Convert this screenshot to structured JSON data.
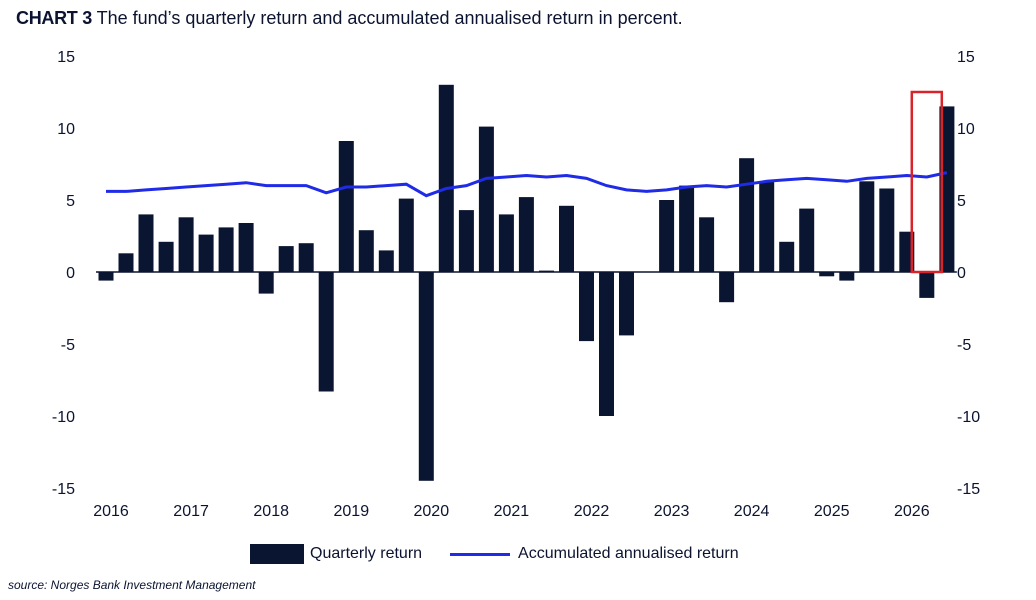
{
  "title": {
    "tag": "CHART 3",
    "text": "The fund’s quarterly return and accumulated annualised return in percent."
  },
  "source": "source: Norges Bank Investment Management",
  "legend": {
    "bar_label": "Quarterly return",
    "line_label": "Accumulated annualised return"
  },
  "colors": {
    "bar": "#0a1631",
    "line": "#1f2be6",
    "highlight": "#d8232a"
  },
  "chart_data": {
    "type": "bar",
    "x_tick_labels": [
      "2016",
      "2017",
      "2018",
      "2019",
      "2020",
      "2021",
      "2022",
      "2023",
      "2024",
      "2025",
      "2026"
    ],
    "y_ticks": [
      15,
      10,
      5,
      0,
      -5,
      -10,
      -15
    ],
    "ylim": [
      -15,
      15
    ],
    "y2lim": [
      -15,
      15
    ],
    "grid": false,
    "highlighted_index": 41,
    "series": [
      {
        "name": "Quarterly return",
        "kind": "bar",
        "values": [
          -0.6,
          1.3,
          4.0,
          2.1,
          3.8,
          2.6,
          3.1,
          3.4,
          -1.5,
          1.8,
          2.0,
          -8.3,
          9.1,
          2.9,
          1.5,
          5.1,
          -14.5,
          13.0,
          4.3,
          10.1,
          4.0,
          5.2,
          0.1,
          4.6,
          -4.8,
          -10.0,
          -4.4,
          0.0,
          5.0,
          6.0,
          3.8,
          -2.1,
          7.9,
          6.3,
          2.1,
          4.4,
          -0.3,
          -0.6,
          6.3,
          5.8,
          2.8,
          -1.8,
          11.5
        ]
      },
      {
        "name": "Accumulated annualised return",
        "kind": "line",
        "values": [
          5.6,
          5.6,
          5.7,
          5.8,
          5.9,
          6.0,
          6.1,
          6.2,
          6.0,
          6.0,
          6.0,
          5.5,
          5.9,
          5.9,
          6.0,
          6.1,
          5.3,
          5.8,
          6.0,
          6.5,
          6.6,
          6.7,
          6.6,
          6.7,
          6.5,
          6.0,
          5.7,
          5.6,
          5.7,
          5.9,
          6.0,
          5.9,
          6.1,
          6.3,
          6.4,
          6.5,
          6.4,
          6.3,
          6.5,
          6.6,
          6.7,
          6.6,
          6.9
        ]
      }
    ]
  }
}
